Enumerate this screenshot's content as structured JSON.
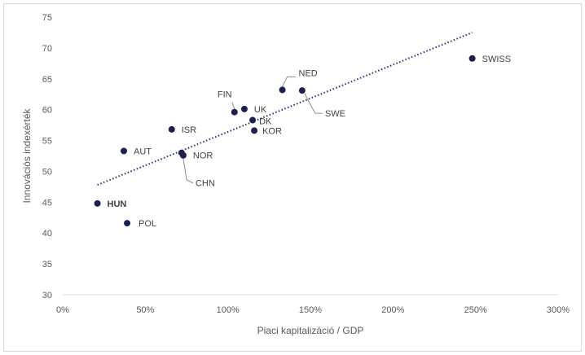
{
  "chart_data": {
    "type": "scatter",
    "title": "",
    "xlabel": "Piaci kapitalizáció / GDP",
    "ylabel": "Innovációs indexérték",
    "xlim": [
      0,
      300
    ],
    "ylim": [
      30,
      75
    ],
    "x_ticks": [
      "0%",
      "50%",
      "100%",
      "150%",
      "200%",
      "250%",
      "300%"
    ],
    "y_ticks": [
      "30",
      "35",
      "40",
      "45",
      "50",
      "55",
      "60",
      "65",
      "70",
      "75"
    ],
    "x_unit": "%",
    "grid": false,
    "marker_color": "#1f1f4f",
    "trendline": {
      "style": "dotted",
      "color": "#2e2e6e",
      "from": [
        21,
        47.8
      ],
      "to": [
        248,
        72.5
      ]
    },
    "points": [
      {
        "label": "SWISS",
        "x": 248,
        "y": 68.3
      },
      {
        "label": "NED",
        "x": 133,
        "y": 63.2
      },
      {
        "label": "SWE",
        "x": 145,
        "y": 63.1
      },
      {
        "label": "FIN",
        "x": 104,
        "y": 59.6
      },
      {
        "label": "UK",
        "x": 110,
        "y": 60.1
      },
      {
        "label": "DK",
        "x": 115,
        "y": 58.3
      },
      {
        "label": "KOR",
        "x": 116,
        "y": 56.6
      },
      {
        "label": "ISR",
        "x": 66,
        "y": 56.8
      },
      {
        "label": "AUT",
        "x": 37,
        "y": 53.3
      },
      {
        "label": "NOR",
        "x": 72,
        "y": 53.0
      },
      {
        "label": "CHN",
        "x": 73,
        "y": 52.6
      },
      {
        "label": "HUN",
        "x": 21,
        "y": 44.8,
        "bold": true
      },
      {
        "label": "POL",
        "x": 39,
        "y": 41.6
      }
    ]
  }
}
